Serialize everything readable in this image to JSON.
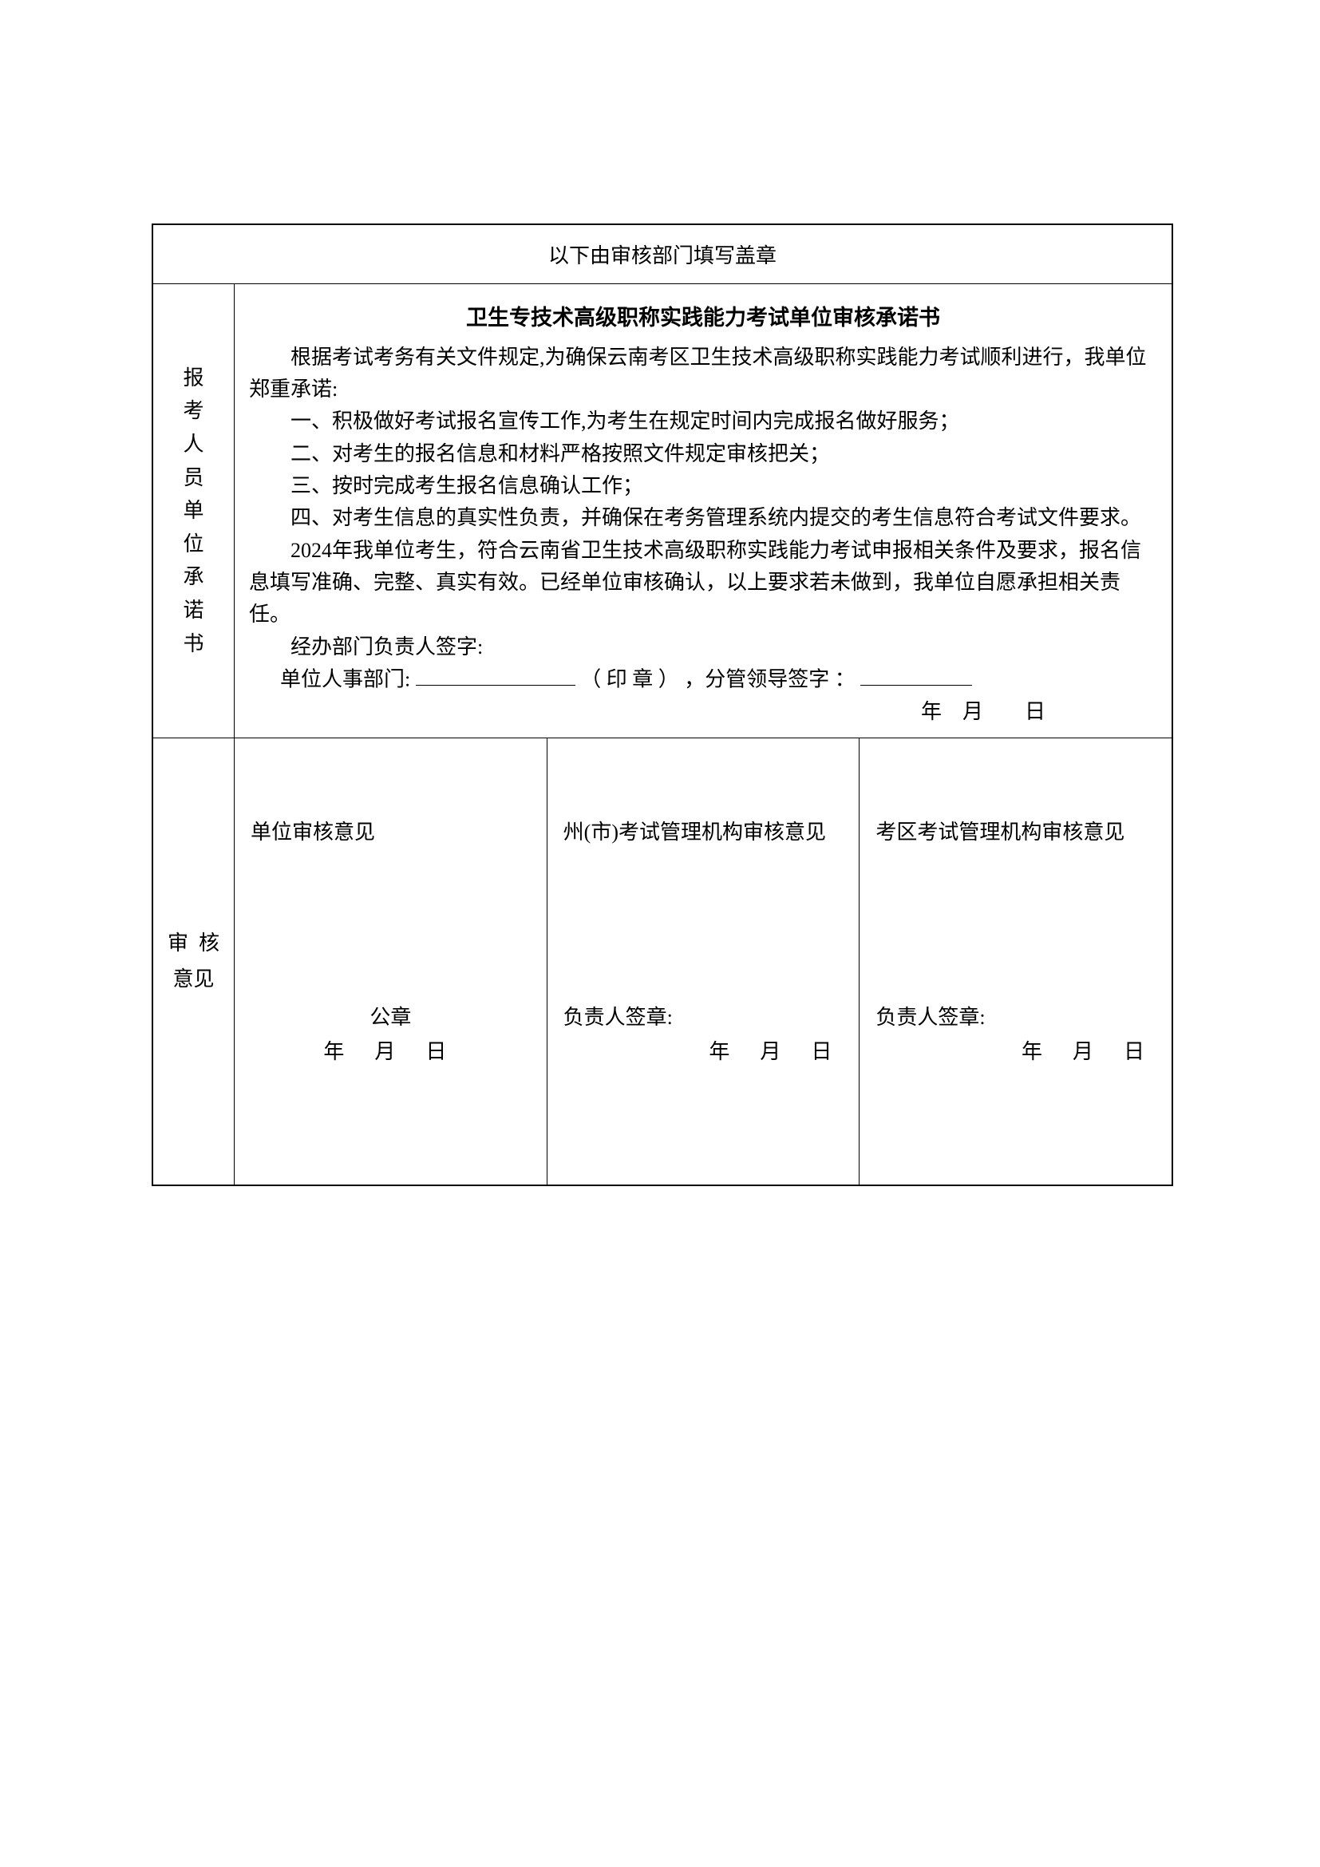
{
  "header": {
    "title": "以下由审核部门填写盖章"
  },
  "pledge": {
    "side_label": "报考人员单位承诺书",
    "title": "卫生专技术高级职称实践能力考试单位审核承诺书",
    "intro": "根据考试考务有关文件规定,为确保云南考区卫生技术高级职称实践能力考试顺利进行，我单位郑重承诺:",
    "items": [
      "一、积极做好考试报名宣传工作,为考生在规定时间内完成报名做好服务；",
      "二、对考生的报名信息和材料严格按照文件规定审核把关；",
      "三、按时完成考生报名信息确认工作；",
      "四、对考生信息的真实性负责，并确保在考务管理系统内提交的考生信息符合考试文件要求。"
    ],
    "closing": "2024年我单位考生，符合云南省卫生技术高级职称实践能力考试申报相关条件及要求，报名信息填写准确、完整、真实有效。已经单位审核确认，以上要求若未做到，我单位自愿承担相关责任。",
    "handler_sig": "经办部门负责人签字:",
    "hr_dept_prefix": "单位人事部门:",
    "stamp_label": "（ 印 章 ）",
    "leader_sig_prefix": "，分管领导签字 ：",
    "date_label": "年　月　　日"
  },
  "review": {
    "side_label": "审　核意见",
    "cols": [
      {
        "title": "单位审核意见",
        "stamp": "公章",
        "date": "年　月　日"
      },
      {
        "title": "州(市)考试管理机构审核意见",
        "sig": "负责人签章:",
        "date": "年　月　日"
      },
      {
        "title": "考区考试管理机构审核意见",
        "sig": "负责人签章:",
        "date": "年　月　日"
      }
    ]
  }
}
